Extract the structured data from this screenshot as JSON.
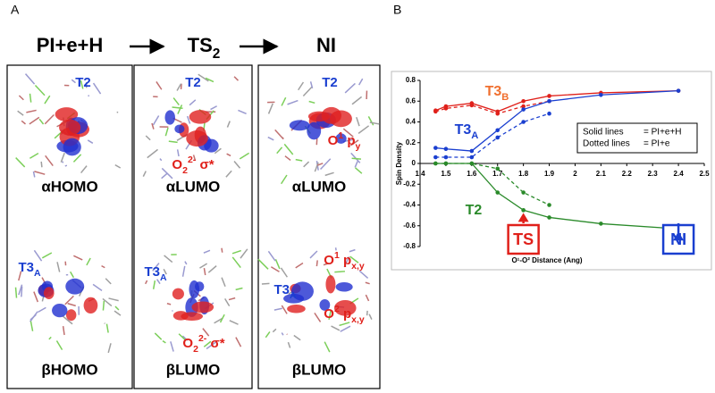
{
  "panel_a": {
    "label": "A",
    "header": [
      {
        "parts": [
          {
            "t": "PI+e+H"
          }
        ]
      },
      {
        "parts": [
          {
            "t": "TS"
          },
          {
            "t": "2",
            "pos": "sub"
          }
        ]
      },
      {
        "parts": [
          {
            "t": "NI"
          }
        ]
      }
    ],
    "columns": [
      {
        "top": {
          "caption": "αHOMO",
          "labels": [
            {
              "color": "#1a3fd0",
              "parts": [
                {
                  "t": "T2"
                }
              ]
            }
          ]
        },
        "bottom": {
          "caption": "βHOMO",
          "labels": [
            {
              "color": "#1a3fd0",
              "parts": [
                {
                  "t": "T3"
                },
                {
                  "t": "A",
                  "pos": "sub"
                }
              ]
            }
          ]
        }
      },
      {
        "top": {
          "caption": "αLUMO",
          "labels": [
            {
              "color": "#1a3fd0",
              "parts": [
                {
                  "t": "T2"
                }
              ]
            },
            {
              "color": "#e0201a",
              "parts": [
                {
                  "t": "O"
                },
                {
                  "t": "2",
                  "pos": "sub"
                },
                {
                  "t": "2-",
                  "pos": "sup"
                },
                {
                  "t": " σ*"
                }
              ]
            }
          ]
        },
        "bottom": {
          "caption": "βLUMO",
          "labels": [
            {
              "color": "#1a3fd0",
              "parts": [
                {
                  "t": "T3"
                },
                {
                  "t": "A",
                  "pos": "sub"
                }
              ]
            },
            {
              "color": "#e0201a",
              "parts": [
                {
                  "t": "O"
                },
                {
                  "t": "2",
                  "pos": "sub"
                },
                {
                  "t": "2-",
                  "pos": "sup"
                },
                {
                  "t": " σ*"
                }
              ]
            }
          ]
        }
      },
      {
        "top": {
          "caption": "αLUMO",
          "labels": [
            {
              "color": "#1a3fd0",
              "parts": [
                {
                  "t": "T2"
                }
              ]
            },
            {
              "color": "#e0201a",
              "parts": [
                {
                  "t": "O"
                },
                {
                  "t": "1",
                  "pos": "sup"
                },
                {
                  "t": " p"
                },
                {
                  "t": "y",
                  "pos": "sub"
                }
              ]
            }
          ]
        },
        "bottom": {
          "caption": "βLUMO",
          "labels": [
            {
              "color": "#1a3fd0",
              "parts": [
                {
                  "t": "T3"
                },
                {
                  "t": "A",
                  "pos": "sub"
                }
              ]
            },
            {
              "color": "#e0201a",
              "parts": [
                {
                  "t": "O"
                },
                {
                  "t": "1",
                  "pos": "sup"
                },
                {
                  "t": " p"
                },
                {
                  "t": "x,y",
                  "pos": "sub"
                }
              ]
            },
            {
              "color": "#e0201a",
              "parts": [
                {
                  "t": "O"
                },
                {
                  "t": "2",
                  "pos": "sup"
                },
                {
                  "t": " p"
                },
                {
                  "t": "x,y",
                  "pos": "sub"
                }
              ]
            }
          ]
        }
      }
    ]
  },
  "chart_data": {
    "type": "line",
    "panel_label": "B",
    "xlabel": "O¹-O² Distance (Ang)",
    "ylabel": "Spin Density",
    "xlim": [
      1.4,
      2.5
    ],
    "ylim": [
      -0.8,
      0.8
    ],
    "xticks": [
      1.4,
      1.5,
      1.6,
      1.7,
      1.8,
      1.9,
      2,
      2.1,
      2.2,
      2.3,
      2.4,
      2.5
    ],
    "yticks": [
      -0.8,
      -0.6,
      -0.4,
      -0.2,
      0,
      0.2,
      0.4,
      0.6,
      0.8
    ],
    "series": [
      {
        "color": "#e0201a",
        "dashed": false,
        "x": [
          1.46,
          1.5,
          1.6,
          1.7,
          1.8,
          1.9,
          2.1,
          2.4
        ],
        "values": [
          0.51,
          0.55,
          0.58,
          0.5,
          0.6,
          0.65,
          0.68,
          0.7
        ]
      },
      {
        "color": "#e0201a",
        "dashed": true,
        "x": [
          1.46,
          1.5,
          1.6,
          1.7,
          1.8,
          1.9
        ],
        "values": [
          0.5,
          0.53,
          0.56,
          0.48,
          0.55,
          0.6
        ]
      },
      {
        "color": "#1a3fd0",
        "dashed": false,
        "x": [
          1.46,
          1.5,
          1.6,
          1.7,
          1.8,
          1.9,
          2.1,
          2.4
        ],
        "values": [
          0.15,
          0.14,
          0.12,
          0.32,
          0.52,
          0.6,
          0.66,
          0.7
        ]
      },
      {
        "color": "#1a3fd0",
        "dashed": true,
        "x": [
          1.46,
          1.5,
          1.6,
          1.7,
          1.8,
          1.9
        ],
        "values": [
          0.06,
          0.06,
          0.06,
          0.25,
          0.4,
          0.48
        ]
      },
      {
        "color": "#2a8a2a",
        "dashed": false,
        "x": [
          1.46,
          1.5,
          1.6,
          1.7,
          1.8,
          1.9,
          2.1,
          2.4
        ],
        "values": [
          0,
          0,
          0,
          -0.28,
          -0.45,
          -0.52,
          -0.58,
          -0.63
        ]
      },
      {
        "color": "#2a8a2a",
        "dashed": true,
        "x": [
          1.46,
          1.5,
          1.6,
          1.7,
          1.8,
          1.9
        ],
        "values": [
          0,
          0,
          0,
          -0.05,
          -0.28,
          -0.4
        ]
      }
    ],
    "annotations": [
      {
        "color": "#f07030",
        "parts": [
          {
            "t": "T3"
          },
          {
            "t": "B",
            "pos": "sub"
          }
        ]
      },
      {
        "color": "#1a3fd0",
        "parts": [
          {
            "t": "T3"
          },
          {
            "t": "A",
            "pos": "sub"
          }
        ]
      },
      {
        "color": "#2a8a2a",
        "parts": [
          {
            "t": "T2"
          }
        ]
      }
    ],
    "callouts": [
      {
        "text": "TS",
        "color": "#e0201a"
      },
      {
        "text": "NI",
        "color": "#1a3fd0"
      }
    ],
    "legend": [
      {
        "label": "Solid lines",
        "desc": "= PI+e+H"
      },
      {
        "label": "Dotted lines",
        "desc": "= PI+e"
      }
    ]
  }
}
